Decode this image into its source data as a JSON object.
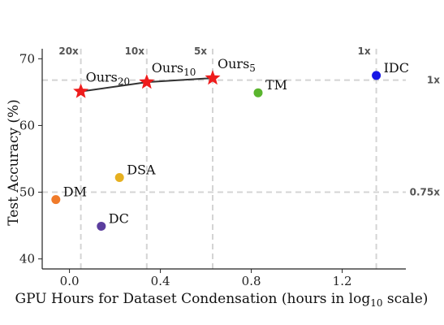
{
  "chart_data": {
    "type": "scatter",
    "xlabel_main": "GPU Hours for Dataset Condensation (hours in log",
    "xlabel_sub": "10",
    "xlabel_tail": " scale)",
    "ylabel": "Test  Accuracy (%)",
    "xlim": [
      -0.12,
      1.48
    ],
    "ylim": [
      38.5,
      71.5
    ],
    "x_ticks": [
      0.0,
      0.4,
      0.8,
      1.2
    ],
    "x_tick_labels": [
      "0.0",
      "0.4",
      "0.8",
      "1.2"
    ],
    "y_ticks": [
      40,
      50,
      60,
      70
    ],
    "y_tick_labels": [
      "40",
      "50",
      "60",
      "70"
    ],
    "vertical_refs": [
      {
        "x": 0.05,
        "label": "20x"
      },
      {
        "x": 0.34,
        "label": "10x"
      },
      {
        "x": 0.63,
        "label": "5x"
      },
      {
        "x": 1.35,
        "label": "1x"
      }
    ],
    "horizontal_refs": [
      {
        "y": 66.8,
        "label": "1x"
      },
      {
        "y": 50.0,
        "label": "0.75x"
      }
    ],
    "ours_line": {
      "points": [
        {
          "x": 0.05,
          "y": 65.1,
          "label": "Ours",
          "sub": "20"
        },
        {
          "x": 0.34,
          "y": 66.5,
          "label": "Ours",
          "sub": "10"
        },
        {
          "x": 0.63,
          "y": 67.1,
          "label": "Ours",
          "sub": "5"
        }
      ],
      "color": "#ee1c1c"
    },
    "points": [
      {
        "name": "IDC",
        "x": 1.35,
        "y": 67.5,
        "color": "#1616e6"
      },
      {
        "name": "TM",
        "x": 0.83,
        "y": 64.9,
        "color": "#5ab52e"
      },
      {
        "name": "DSA",
        "x": 0.22,
        "y": 52.2,
        "color": "#e6b020"
      },
      {
        "name": "DM",
        "x": -0.06,
        "y": 48.9,
        "color": "#f07b2a"
      },
      {
        "name": "DC",
        "x": 0.14,
        "y": 44.9,
        "color": "#5b3e9e"
      }
    ],
    "grid": false
  }
}
